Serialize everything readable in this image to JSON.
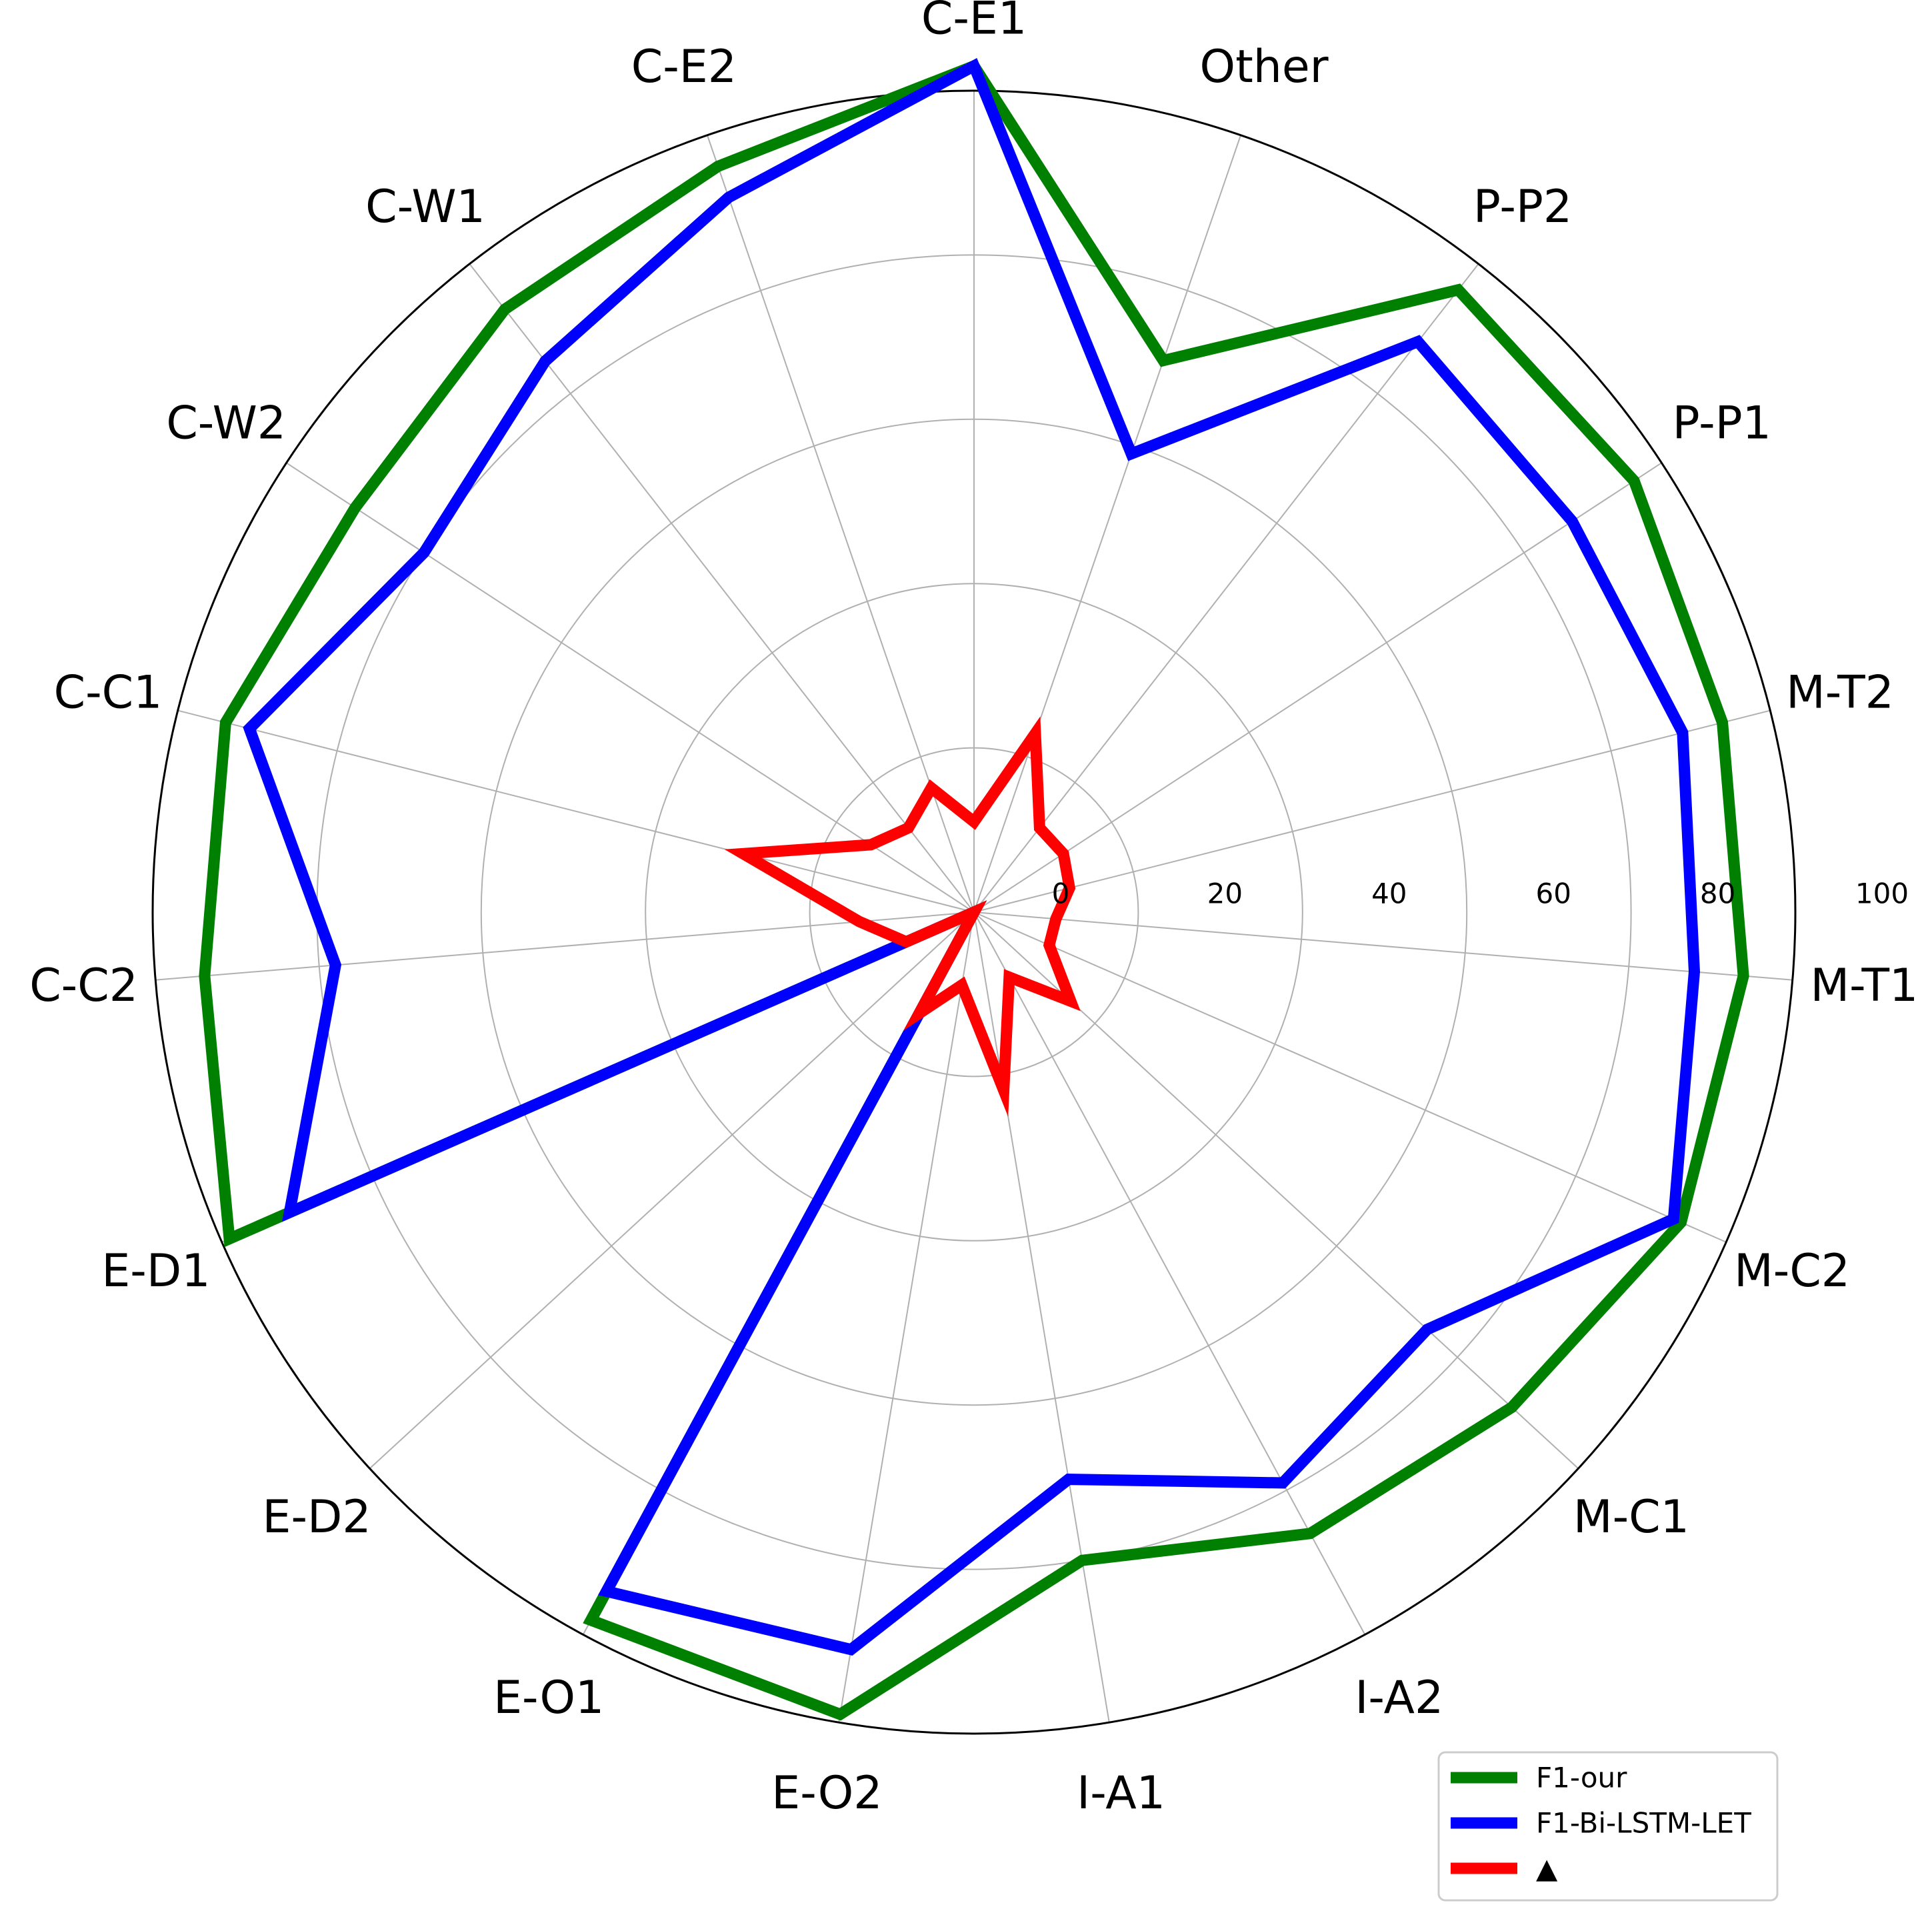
{
  "chart_data": {
    "type": "radar",
    "categories": [
      "C-E1",
      "Other",
      "P-P2",
      "P-P1",
      "M-T2",
      "M-T1",
      "M-C2",
      "M-C1",
      "I-A2",
      "I-A1",
      "E-O2",
      "E-O1",
      "E-D2",
      "E-D1",
      "C-C2",
      "C-C1",
      "C-W2",
      "C-W1",
      "C-E2"
    ],
    "r_ticks": [
      0,
      20,
      40,
      60,
      80,
      100
    ],
    "r_tick_labels": [
      "0",
      "20",
      "40",
      "60",
      "80",
      "100"
    ],
    "rlim": [
      0,
      100
    ],
    "grid": true,
    "legend_position": "lower-right",
    "series": [
      {
        "name": "F1-our",
        "color": "#008000",
        "values": [
          103,
          71,
          96,
          96,
          94,
          94,
          94,
          89,
          86,
          80,
          99,
          98,
          0,
          99,
          94,
          94,
          90,
          93,
          96
        ]
      },
      {
        "name": "F1-Bi-LSTM-LET",
        "color": "#0000ff",
        "values": [
          103,
          59,
          88,
          87,
          89,
          88,
          93,
          75,
          79,
          70,
          91,
          94,
          0,
          91,
          78,
          91,
          80,
          85,
          92
        ]
      },
      {
        "name": "▲",
        "color": "#ff0000",
        "values": [
          11,
          23,
          13,
          13,
          12,
          10,
          10,
          16,
          9,
          22,
          9,
          14,
          0,
          9,
          14,
          29,
          15,
          13,
          16
        ]
      }
    ]
  }
}
